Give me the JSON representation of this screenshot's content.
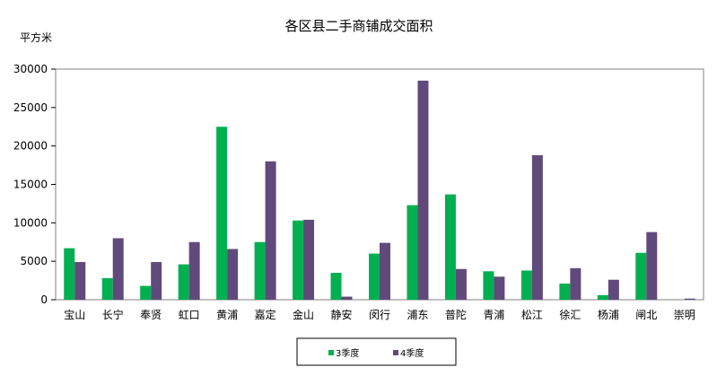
{
  "chart_data": {
    "type": "bar",
    "title": "各区县二手商铺成交面积",
    "ylabel": "平方米",
    "xlabel": "",
    "ylim": [
      0,
      30000
    ],
    "yticks": [
      0,
      5000,
      10000,
      15000,
      20000,
      25000,
      30000
    ],
    "grid": false,
    "legend_position": "bottom",
    "categories": [
      "宝山",
      "长宁",
      "奉贤",
      "虹口",
      "黄浦",
      "嘉定",
      "金山",
      "静安",
      "闵行",
      "浦东",
      "普陀",
      "青浦",
      "松江",
      "徐汇",
      "杨浦",
      "闸北",
      "崇明"
    ],
    "series": [
      {
        "name": "3季度",
        "color": "#00b050",
        "values": [
          6700,
          2800,
          1800,
          4600,
          22500,
          7500,
          10300,
          3500,
          6000,
          12300,
          13700,
          3700,
          3800,
          2100,
          600,
          6100,
          0
        ]
      },
      {
        "name": "4季度",
        "color": "#604a7b",
        "values": [
          4900,
          8000,
          4900,
          7500,
          6600,
          18000,
          10400,
          400,
          7400,
          28500,
          4000,
          3000,
          18800,
          4100,
          2600,
          8800,
          150
        ]
      }
    ]
  }
}
